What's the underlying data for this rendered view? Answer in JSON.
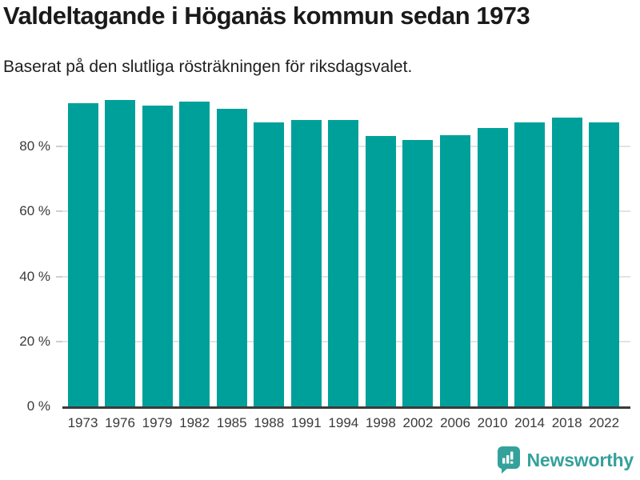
{
  "title": "Valdeltagande i Höganäs kommun sedan 1973",
  "subtitle": "Baserat på den slutliga rösträkningen för riksdagsvalet.",
  "chart_data": {
    "type": "bar",
    "title": "Valdeltagande i Höganäs kommun sedan 1973",
    "subtitle": "Baserat på den slutliga rösträkningen för riksdagsvalet.",
    "categories": [
      "1973",
      "1976",
      "1979",
      "1982",
      "1985",
      "1988",
      "1991",
      "1994",
      "1998",
      "2002",
      "2006",
      "2010",
      "2014",
      "2018",
      "2022"
    ],
    "values": [
      93.2,
      94.4,
      92.6,
      93.7,
      91.5,
      87.5,
      88.1,
      88.1,
      83.1,
      81.9,
      83.4,
      85.7,
      87.4,
      88.9,
      87.4
    ],
    "unit": "%",
    "xlabel": "",
    "ylabel": "",
    "ylim": [
      0,
      100
    ],
    "y_ticks": [
      0,
      20,
      40,
      60,
      80
    ],
    "y_tick_labels": [
      "0 %",
      "20 %",
      "40 %",
      "60 %",
      "80 %"
    ],
    "grid": "horizontal-only",
    "legend": "none"
  },
  "colors": {
    "bar": "#00A09A",
    "axis_line": "#3B3B3B",
    "gridline": "#E3E3E3",
    "tick": "#CFCFCF",
    "title_text": "#1A1A1A",
    "axis_text": "#3A3A3A",
    "logo": "#35A19B",
    "background": "#FFFFFF"
  },
  "footer": {
    "brand": "Newsworthy",
    "logo_icon": "newsworthy-speech-bubble-bar-chart-icon"
  }
}
